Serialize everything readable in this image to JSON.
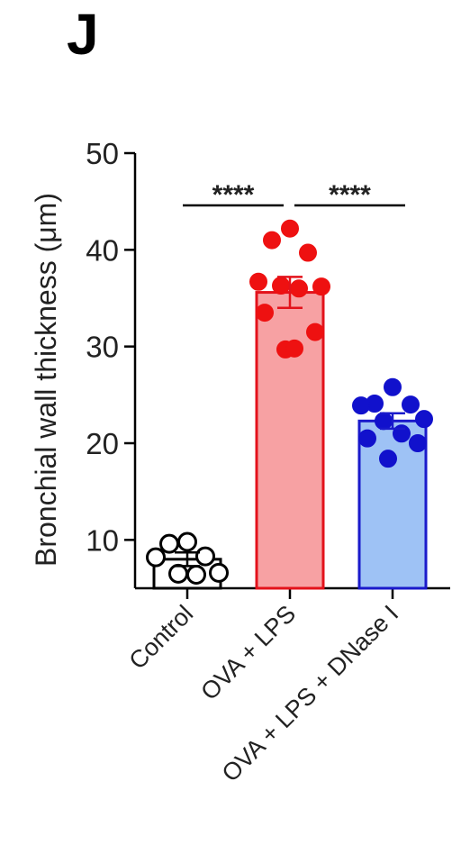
{
  "panel_label": "J",
  "chart_data": {
    "type": "bar",
    "title": "",
    "xlabel": "",
    "ylabel": "Bronchial wall thickness (μm)",
    "ylim": [
      5,
      50
    ],
    "yticks": [
      10,
      20,
      30,
      40,
      50
    ],
    "categories": [
      "Control",
      "OVA + LPS",
      "OVA + LPS + DNase I"
    ],
    "series": [
      {
        "values": [
          8.0,
          35.6,
          22.3
        ],
        "sem": [
          0.7,
          1.6,
          0.8
        ],
        "fill_colors": [
          "#ffffff",
          "#f7a1a3",
          "#9ec2f5"
        ],
        "edge_colors": [
          "#000000",
          "#e3121b",
          "#1a1acb"
        ],
        "point_colors": [
          "#000000",
          "#ee1111",
          "#1111cc"
        ],
        "points": [
          [
            9.8,
            9.6,
            8.3,
            8.2,
            6.6,
            6.5,
            6.4
          ],
          [
            42.2,
            41.0,
            39.7,
            36.7,
            36.2,
            36.3,
            36.0,
            33.5,
            31.5,
            29.7,
            29.8
          ],
          [
            25.8,
            24.1,
            24.0,
            23.9,
            22.5,
            22.3,
            21.0,
            20.5,
            20.0,
            18.4
          ]
        ]
      }
    ],
    "significance": [
      {
        "from": 0,
        "to": 1,
        "label": "****"
      },
      {
        "from": 1,
        "to": 2,
        "label": "****"
      }
    ],
    "grid": false,
    "legend": "none"
  }
}
